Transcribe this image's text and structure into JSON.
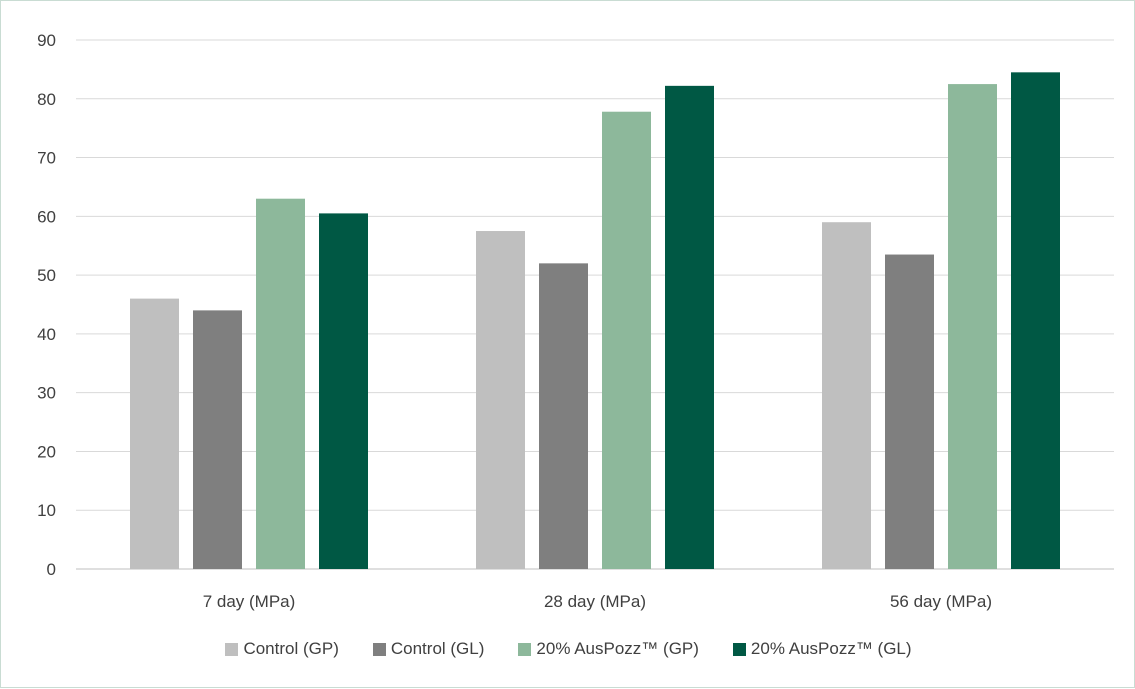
{
  "chart_data": {
    "type": "bar",
    "categories": [
      "7 day (MPa)",
      "28 day (MPa)",
      "56 day (MPa)"
    ],
    "ylim": [
      0,
      90
    ],
    "yticks": [
      0,
      10,
      20,
      30,
      40,
      50,
      60,
      70,
      80,
      90
    ],
    "grid": true,
    "legend_position": "bottom",
    "series": [
      {
        "name": "Control (GP)",
        "color": "#bfbfbf",
        "values": [
          46,
          57.5,
          59
        ]
      },
      {
        "name": "Control (GL)",
        "color": "#7f7f7f",
        "values": [
          44,
          52,
          53.5
        ]
      },
      {
        "name": "20% AusPozz™ (GP)",
        "color": "#8db89b",
        "values": [
          63,
          77.8,
          82.5
        ]
      },
      {
        "name": "20% AusPozz™ (GL)",
        "color": "#005844",
        "values": [
          60.5,
          82.2,
          84.5
        ]
      }
    ]
  }
}
